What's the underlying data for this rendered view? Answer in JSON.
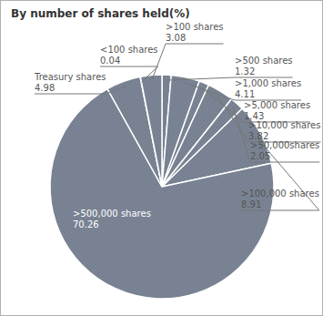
{
  "chart_data": {
    "type": "pie",
    "title": "By number of shares held(%)",
    "categories": [
      ">500 shares",
      ">1,000 shares",
      ">5,000 shares",
      ">10,000 shares",
      ">50,000shares",
      ">100,000 shares",
      ">500,000 shares",
      "Treasury shares",
      "<100 shares",
      ">100 shares"
    ],
    "values": [
      1.32,
      4.11,
      1.43,
      3.82,
      2.05,
      8.91,
      70.26,
      4.98,
      0.04,
      3.08
    ],
    "color": "#7b8595",
    "data_labels": true
  }
}
